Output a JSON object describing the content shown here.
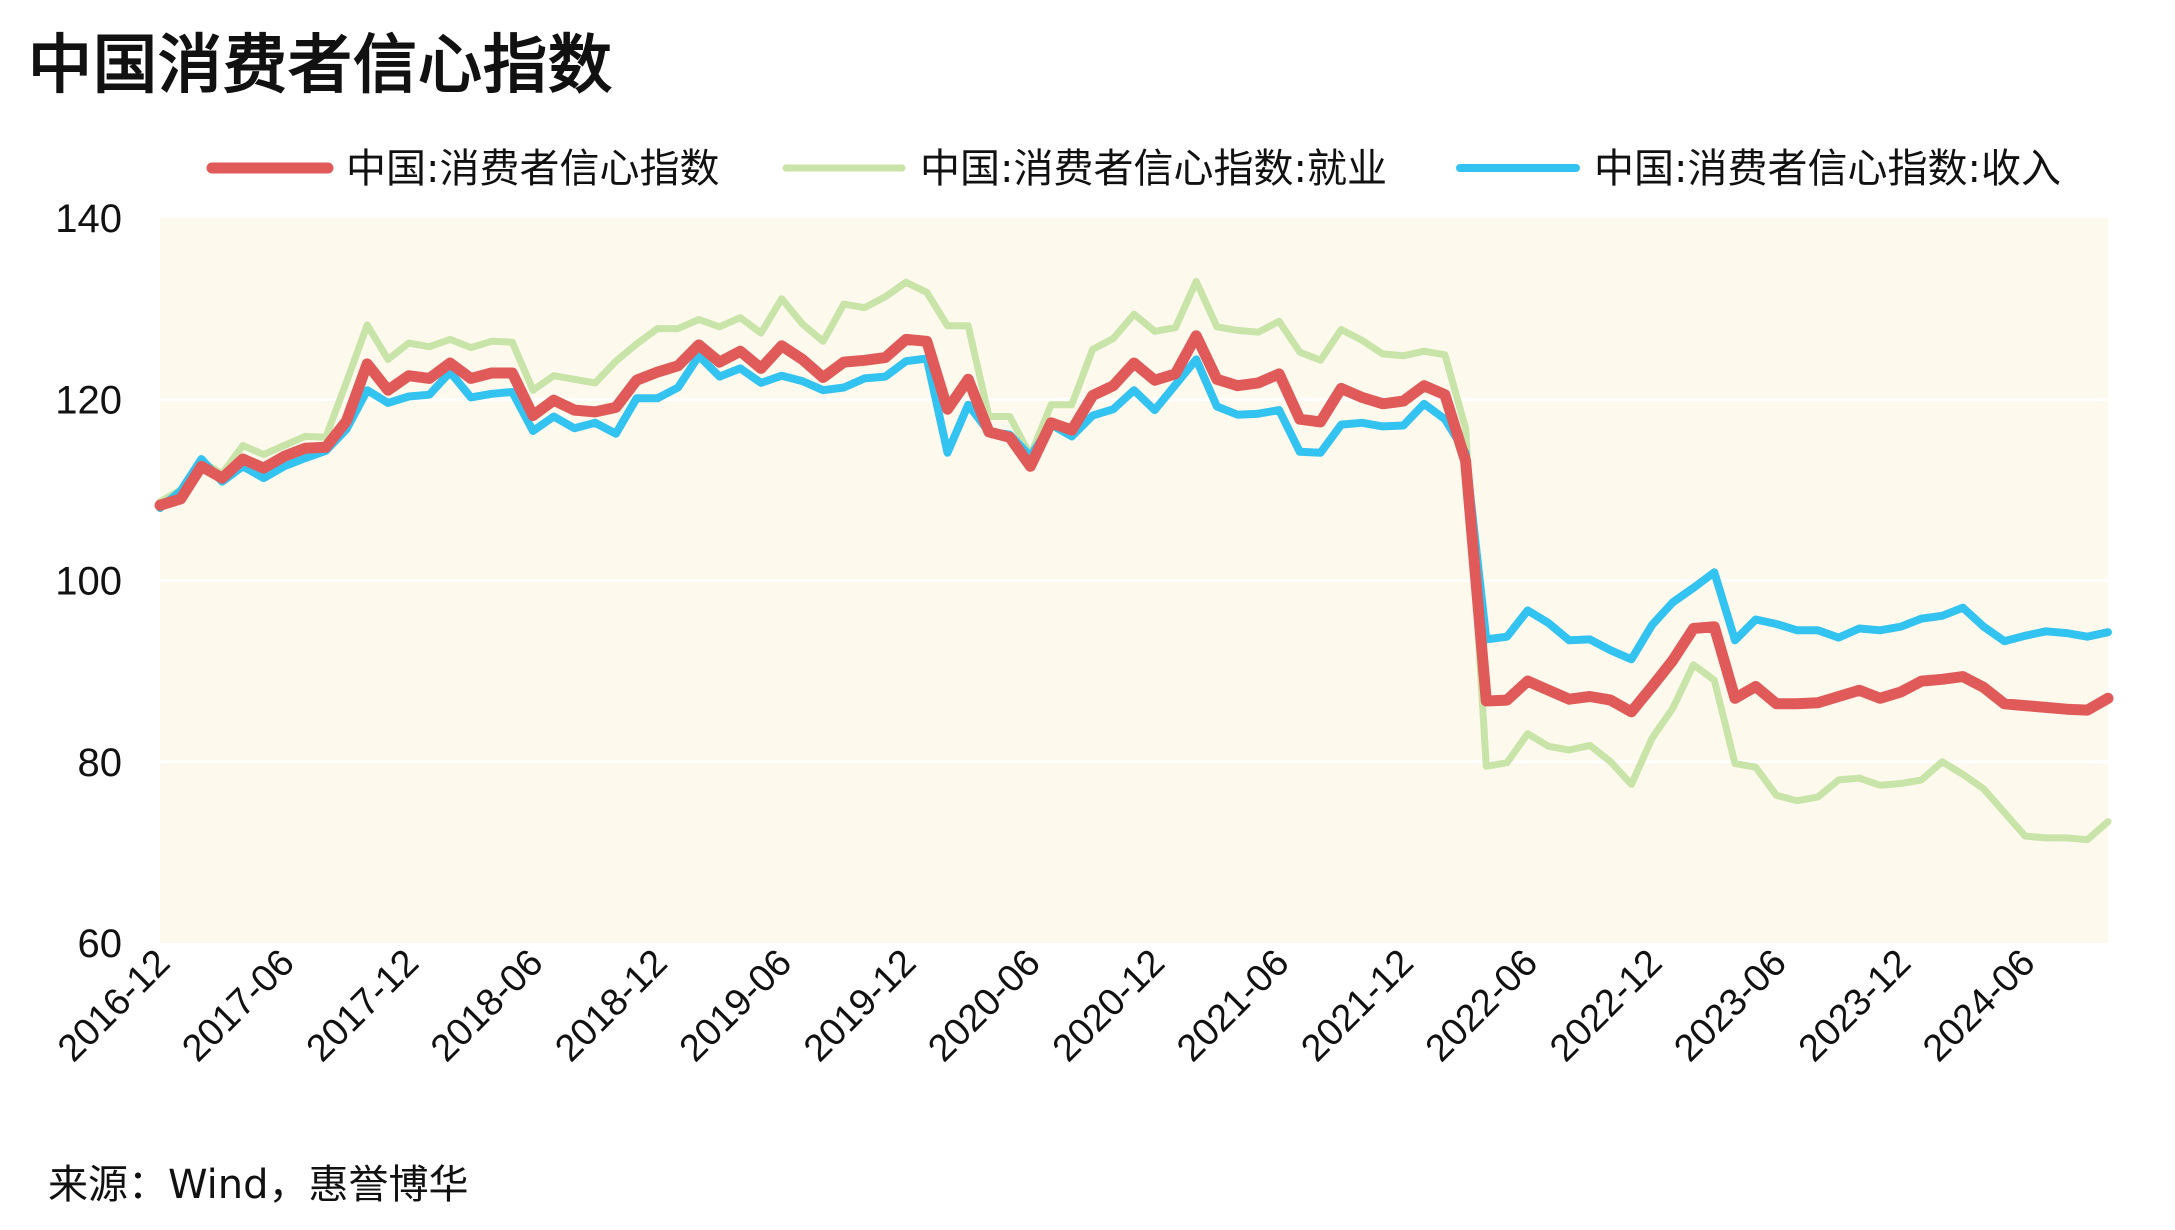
{
  "title": "中国消费者信心指数",
  "source": "来源：Wind，惠誉博华",
  "chart_data": {
    "type": "line",
    "title": "中国消费者信心指数",
    "xlabel": "",
    "ylabel": "",
    "ylim": [
      60,
      140
    ],
    "yticks": [
      60,
      80,
      100,
      120,
      140
    ],
    "xtick_labels": [
      "2016-12",
      "2017-06",
      "2017-12",
      "2018-06",
      "2018-12",
      "2019-06",
      "2019-12",
      "2020-06",
      "2020-12",
      "2021-06",
      "2021-12",
      "2022-06",
      "2022-12",
      "2023-06",
      "2023-12",
      "2024-06"
    ],
    "x": [
      "2016-12",
      "2017-01",
      "2017-02",
      "2017-03",
      "2017-04",
      "2017-05",
      "2017-06",
      "2017-07",
      "2017-08",
      "2017-09",
      "2017-10",
      "2017-11",
      "2017-12",
      "2018-01",
      "2018-02",
      "2018-03",
      "2018-04",
      "2018-05",
      "2018-06",
      "2018-07",
      "2018-08",
      "2018-09",
      "2018-10",
      "2018-11",
      "2018-12",
      "2019-01",
      "2019-02",
      "2019-03",
      "2019-04",
      "2019-05",
      "2019-06",
      "2019-07",
      "2019-08",
      "2019-09",
      "2019-10",
      "2019-11",
      "2019-12",
      "2020-01",
      "2020-02",
      "2020-03",
      "2020-04",
      "2020-05",
      "2020-06",
      "2020-07",
      "2020-08",
      "2020-09",
      "2020-10",
      "2020-11",
      "2020-12",
      "2021-01",
      "2021-02",
      "2021-03",
      "2021-04",
      "2021-05",
      "2021-06",
      "2021-07",
      "2021-08",
      "2021-09",
      "2021-10",
      "2021-11",
      "2021-12",
      "2022-01",
      "2022-02",
      "2022-03",
      "2022-04",
      "2022-05",
      "2022-06",
      "2022-07",
      "2022-08",
      "2022-09",
      "2022-10",
      "2022-11",
      "2022-12",
      "2023-01",
      "2023-02",
      "2023-03",
      "2023-04",
      "2023-05",
      "2023-06",
      "2023-07",
      "2023-08",
      "2023-09",
      "2023-10",
      "2023-11",
      "2023-12",
      "2024-01",
      "2024-02",
      "2024-03",
      "2024-04",
      "2024-05",
      "2024-06",
      "2024-07",
      "2024-08",
      "2024-09",
      "2024-10"
    ],
    "series": [
      {
        "name": "中国:消费者信心指数",
        "color": "#e05a5a",
        "values": [
          108.3,
          109.0,
          112.6,
          111.3,
          113.4,
          112.4,
          113.7,
          114.6,
          114.7,
          117.6,
          123.9,
          121.0,
          122.6,
          122.3,
          124.0,
          122.3,
          122.9,
          122.9,
          118.2,
          119.9,
          118.8,
          118.6,
          119.1,
          122.1,
          123.0,
          123.7,
          126.0,
          124.1,
          125.3,
          123.4,
          125.9,
          124.4,
          122.4,
          124.1,
          124.3,
          124.6,
          126.6,
          126.4,
          118.9,
          122.2,
          116.4,
          115.8,
          112.6,
          117.4,
          116.6,
          120.4,
          121.5,
          124.0,
          122.1,
          122.8,
          127.0,
          122.2,
          121.5,
          121.8,
          122.8,
          117.8,
          117.5,
          121.2,
          120.2,
          119.5,
          119.8,
          121.5,
          120.5,
          113.2,
          86.7,
          86.8,
          88.9,
          87.9,
          86.9,
          87.2,
          86.8,
          85.5,
          88.3,
          91.2,
          94.7,
          94.9,
          87.0,
          88.3,
          86.4,
          86.4,
          86.5,
          87.2,
          87.9,
          87.0,
          87.7,
          88.9,
          89.1,
          89.4,
          88.2,
          86.4,
          86.2,
          86.0,
          85.8,
          85.7,
          87.0
        ]
      },
      {
        "name": "中国:消费者信心指数:就业",
        "color": "#c8e4a8",
        "values": [
          108.7,
          110.0,
          113.1,
          111.8,
          114.9,
          113.9,
          114.9,
          115.9,
          115.8,
          121.9,
          128.2,
          124.4,
          126.2,
          125.8,
          126.6,
          125.7,
          126.4,
          126.3,
          121.0,
          122.6,
          122.2,
          121.8,
          124.2,
          126.1,
          127.8,
          127.8,
          128.8,
          128.0,
          129.0,
          127.3,
          131.1,
          128.3,
          126.4,
          130.5,
          130.1,
          131.3,
          132.9,
          131.8,
          128.1,
          128.1,
          118.1,
          118.1,
          113.8,
          119.4,
          119.4,
          125.5,
          126.7,
          129.4,
          127.5,
          127.9,
          133.0,
          128.0,
          127.6,
          127.4,
          128.6,
          125.2,
          124.3,
          127.7,
          126.5,
          125.0,
          124.8,
          125.3,
          124.9,
          116.8,
          79.5,
          79.9,
          83.1,
          81.7,
          81.3,
          81.8,
          80.0,
          77.5,
          82.6,
          85.9,
          90.7,
          89.0,
          79.8,
          79.4,
          76.3,
          75.7,
          76.1,
          78.0,
          78.2,
          77.4,
          77.6,
          78.0,
          80.0,
          78.6,
          77.0,
          74.4,
          71.8,
          71.6,
          71.6,
          71.4,
          73.4
        ]
      },
      {
        "name": "中国:消费者信心指数:收入",
        "color": "#33c3f0",
        "values": [
          108.0,
          109.9,
          113.4,
          110.9,
          112.6,
          111.3,
          112.6,
          113.5,
          114.3,
          116.7,
          121.0,
          119.6,
          120.3,
          120.5,
          123.0,
          120.2,
          120.6,
          120.8,
          116.5,
          118.1,
          116.8,
          117.4,
          116.2,
          120.1,
          120.1,
          121.3,
          124.8,
          122.5,
          123.4,
          121.8,
          122.6,
          122.0,
          121.0,
          121.3,
          122.3,
          122.5,
          124.2,
          124.5,
          114.1,
          119.4,
          116.4,
          116.1,
          113.7,
          117.2,
          115.9,
          118.2,
          118.9,
          121.0,
          118.8,
          121.6,
          124.4,
          119.2,
          118.3,
          118.4,
          118.8,
          114.2,
          114.1,
          117.2,
          117.4,
          117.0,
          117.1,
          119.5,
          117.8,
          114.1,
          93.5,
          93.8,
          96.7,
          95.3,
          93.4,
          93.5,
          92.3,
          91.3,
          95.1,
          97.6,
          99.2,
          100.9,
          93.4,
          95.7,
          95.2,
          94.5,
          94.5,
          93.7,
          94.7,
          94.5,
          94.9,
          95.8,
          96.1,
          97.0,
          94.9,
          93.3,
          93.9,
          94.4,
          94.2,
          93.8,
          94.3
        ]
      }
    ],
    "legend": "top",
    "grid": true,
    "background": "#fdf9ec"
  }
}
